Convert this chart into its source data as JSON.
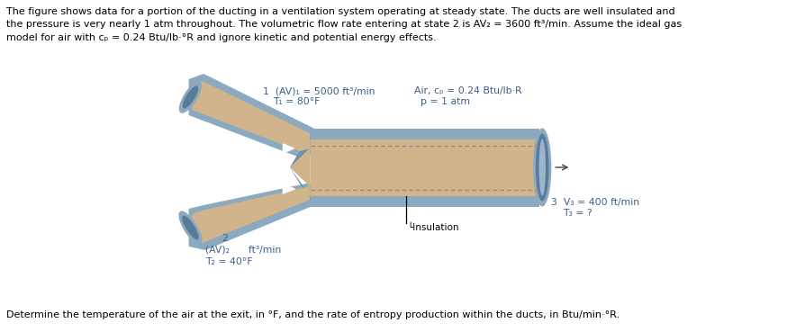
{
  "header_text": "The figure shows data for a portion of the ducting in a ventilation system operating at steady state. The ducts are well insulated and\nthe pressure is very nearly 1 atm throughout. The volumetric flow rate entering at state 2 is AV₂ = 3600 ft³/min. Assume the ideal gas\nmodel for air with cₚ = 0.24 Btu/lb·°R and ignore kinetic and potential energy effects.",
  "footer_text": "Determine the temperature of the air at the exit, in °F, and the rate of entropy production within the ducts, in Btu/min·°R.",
  "label1_num": "1",
  "label1_av": "(AV)₁ = 5000 ft³/min",
  "label1_T": "T₁ = 80°F",
  "label_air1": "Air, cₚ = 0.24 Btu/lb·R",
  "label_air2": "p = 1 atm",
  "label2_num": "2",
  "label2_av": "(AV)₂",
  "label2_unit": "ft³/min",
  "label2_T": "T₂ = 40°F",
  "label3_num": "3",
  "label3_V": "V₃ = 400 ft/min",
  "label3_T": "T₃ = ?",
  "label_insulation": "└Insulation",
  "duct_fill": "#D2B48C",
  "duct_blue": "#8BAABF",
  "duct_blue_dark": "#5A7A9A",
  "duct_blue_mid": "#7090B0",
  "bg_color": "#FFFFFF",
  "text_blue": "#3A5F8A",
  "text_black": "#000000",
  "dashed_color": "#888888",
  "arrow_color": "#444444"
}
